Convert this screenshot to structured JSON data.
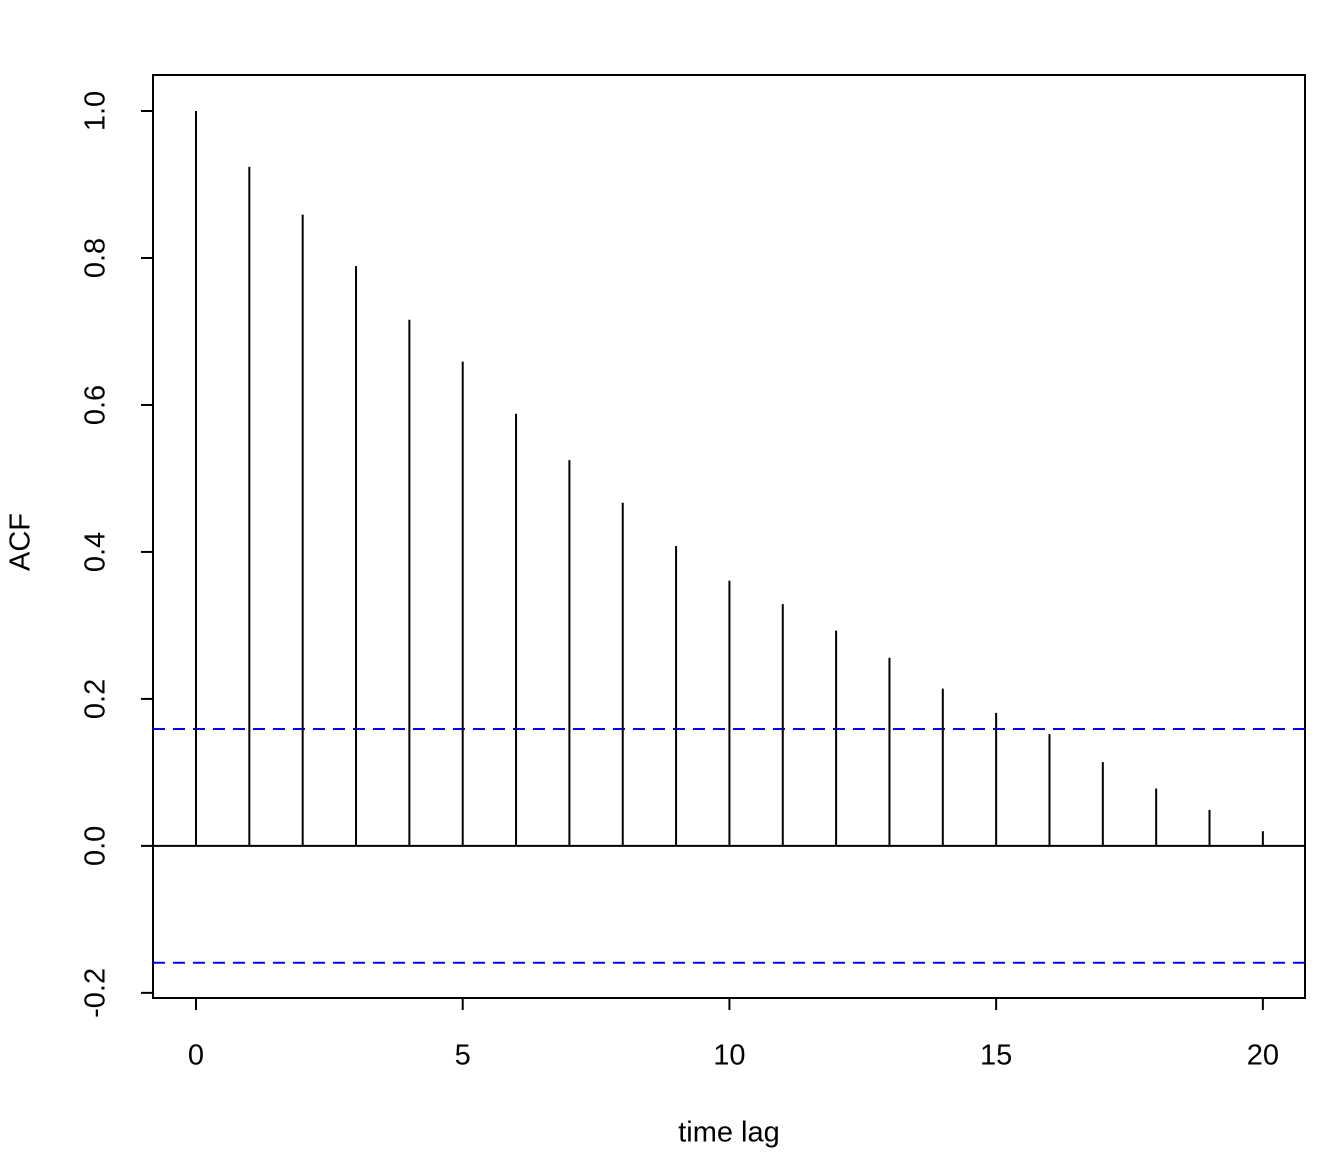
{
  "chart_data": {
    "type": "acf",
    "xlabel": "time lag",
    "ylabel": "ACF",
    "x": [
      0,
      1,
      2,
      3,
      4,
      5,
      6,
      7,
      8,
      9,
      10,
      11,
      12,
      13,
      14,
      15,
      16,
      17,
      18,
      19,
      20
    ],
    "values": [
      1.0,
      0.924,
      0.859,
      0.789,
      0.716,
      0.659,
      0.588,
      0.525,
      0.467,
      0.408,
      0.361,
      0.329,
      0.293,
      0.256,
      0.214,
      0.181,
      0.152,
      0.114,
      0.078,
      0.049,
      0.02
    ],
    "color": "#000000",
    "conf_limits": [
      0.159,
      -0.159
    ],
    "conf_color": "#0000ff",
    "xlim": [
      -0.806,
      20.79
    ],
    "ylim": [
      -0.207,
      1.049
    ],
    "xticks": [
      0,
      5,
      10,
      15,
      20
    ],
    "yticks": [
      -0.2,
      {
        "value": 0,
        "label": "0.0"
      },
      0.2,
      0.4,
      0.6,
      0.8,
      {
        "value": 1,
        "label": "1.0"
      }
    ]
  }
}
